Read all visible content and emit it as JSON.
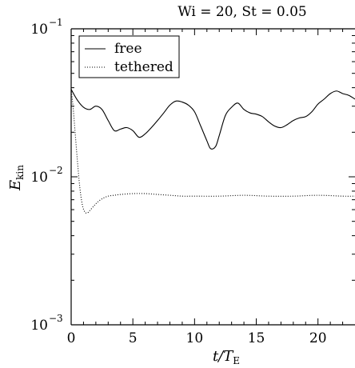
{
  "chart_data": {
    "type": "line",
    "title": "Wi = 20, St = 0.05",
    "xlabel": "t/T_E",
    "ylabel": "E_kin",
    "xscale": "linear",
    "yscale": "log",
    "xlim": [
      0,
      23
    ],
    "ylim": [
      0.001,
      0.1
    ],
    "xticks": [
      0,
      5,
      10,
      15,
      20
    ],
    "xtick_labels": [
      "0",
      "5",
      "10",
      "15",
      "20"
    ],
    "yticks": [
      0.001,
      0.01,
      0.1
    ],
    "ytick_labels": [
      "10",
      "10",
      "10"
    ],
    "ytick_exponents": [
      "−3",
      "−2",
      "−1"
    ],
    "grid": false,
    "legend_position": "top-left",
    "series": [
      {
        "name": "free",
        "style": "solid",
        "color": "#000000",
        "x": [
          0,
          0.5,
          1,
          1.5,
          2,
          2.5,
          3,
          3.5,
          4,
          4.5,
          5,
          5.5,
          6,
          6.5,
          7,
          7.5,
          8,
          8.5,
          9,
          9.5,
          10,
          10.5,
          11,
          11.3,
          11.7,
          12,
          12.5,
          13,
          13.5,
          14,
          14.5,
          15,
          15.5,
          16,
          16.5,
          17,
          17.5,
          18,
          18.5,
          19,
          19.5,
          20,
          20.5,
          21,
          21.5,
          22,
          22.5,
          23
        ],
        "y": [
          0.039,
          0.033,
          0.0295,
          0.0285,
          0.03,
          0.0285,
          0.024,
          0.0205,
          0.021,
          0.0215,
          0.0205,
          0.0185,
          0.0195,
          0.0215,
          0.024,
          0.027,
          0.0305,
          0.0325,
          0.032,
          0.0305,
          0.0275,
          0.022,
          0.0175,
          0.0155,
          0.016,
          0.019,
          0.026,
          0.0295,
          0.0315,
          0.0285,
          0.027,
          0.0265,
          0.0255,
          0.0235,
          0.022,
          0.0215,
          0.0225,
          0.024,
          0.025,
          0.0255,
          0.0275,
          0.031,
          0.0335,
          0.0365,
          0.038,
          0.0365,
          0.0355,
          0.0335
        ]
      },
      {
        "name": "tethered",
        "style": "dotted",
        "color": "#000000",
        "x": [
          0,
          0.15,
          0.3,
          0.5,
          0.7,
          0.9,
          1.1,
          1.3,
          1.5,
          1.8,
          2.1,
          2.5,
          3,
          3.5,
          4,
          5,
          6,
          7,
          8,
          9,
          10,
          12,
          14,
          16,
          18,
          20,
          22,
          23
        ],
        "y": [
          0.039,
          0.03,
          0.021,
          0.013,
          0.0085,
          0.0065,
          0.0058,
          0.0057,
          0.0059,
          0.0063,
          0.0067,
          0.0071,
          0.0074,
          0.0075,
          0.0076,
          0.0077,
          0.0077,
          0.0076,
          0.0075,
          0.0074,
          0.0074,
          0.0074,
          0.0075,
          0.0074,
          0.0074,
          0.0075,
          0.0074,
          0.0074
        ]
      }
    ]
  }
}
